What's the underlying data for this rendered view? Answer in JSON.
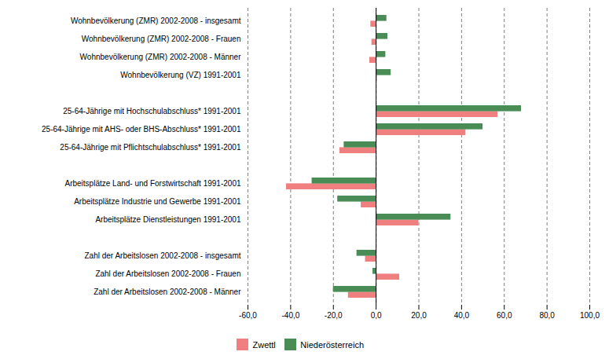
{
  "chart_data": {
    "type": "bar",
    "orientation": "horizontal",
    "categories": [
      "Wohnbevölkerung (ZMR) 2002-2008 - insgesamt",
      "Wohnbevölkerung (ZMR) 2002-2008 - Frauen",
      "Wohnbevölkerung (ZMR) 2002-2008 - Männer",
      "Wohnbevölkerung (VZ) 1991-2001",
      null,
      "25-64-Jährige mit Hochschulabschluss* 1991-2001",
      "25-64-Jährige mit AHS- oder BHS-Abschluss* 1991-2001",
      "25-64-Jährige mit Pflichtschulabschluss* 1991-2001",
      null,
      "Arbeitsplätze Land- und Forstwirtschaft 1991-2001",
      "Arbeitsplätze Industrie und Gewerbe 1991-2001",
      "Arbeitsplätze Dienstleistungen 1991-2001",
      null,
      "Zahl der Arbeitslosen 2002-2008 - insgesamt",
      "Zahl der Arbeitslosen 2002-2008 - Frauen",
      "Zahl der Arbeitslosen 2002-2008 - Männer"
    ],
    "series": [
      {
        "name": "Zwettl",
        "color": "#f08080",
        "values": [
          -2.5,
          -2.0,
          -3.0,
          0.5,
          null,
          57.0,
          42.0,
          -17.0,
          null,
          -42.0,
          -7.0,
          20.0,
          null,
          -5.0,
          11.0,
          -13.0
        ]
      },
      {
        "name": "Niederösterreich",
        "color": "#4a8c55",
        "values": [
          5.0,
          5.5,
          4.5,
          7.0,
          null,
          68.0,
          50.0,
          -15.0,
          null,
          -30.0,
          -18.0,
          35.0,
          null,
          -9.0,
          -1.5,
          -20.0
        ]
      }
    ],
    "xlim": [
      -60,
      100
    ],
    "xticks": [
      {
        "value": -60,
        "label": "-60,0"
      },
      {
        "value": -40,
        "label": "-40,0"
      },
      {
        "value": -20,
        "label": "-20,0"
      },
      {
        "value": 0,
        "label": "0,0"
      },
      {
        "value": 20,
        "label": "20,0"
      },
      {
        "value": 40,
        "label": "40,0"
      },
      {
        "value": 60,
        "label": "60,0"
      },
      {
        "value": 80,
        "label": "80,0"
      },
      {
        "value": 100,
        "label": "100,0"
      }
    ],
    "grid": true,
    "legend": "bottom"
  }
}
